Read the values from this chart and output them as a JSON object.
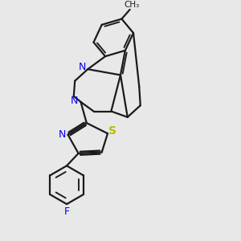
{
  "bg_color": "#e8e8e8",
  "bond_color": "#1a1a1a",
  "N_color": "#0000ee",
  "S_color": "#bbbb00",
  "F_color": "#0000ee",
  "line_width": 1.6,
  "fig_size": [
    3.0,
    3.0
  ],
  "dpi": 100,
  "xlim": [
    0,
    10
  ],
  "ylim": [
    0,
    10
  ]
}
